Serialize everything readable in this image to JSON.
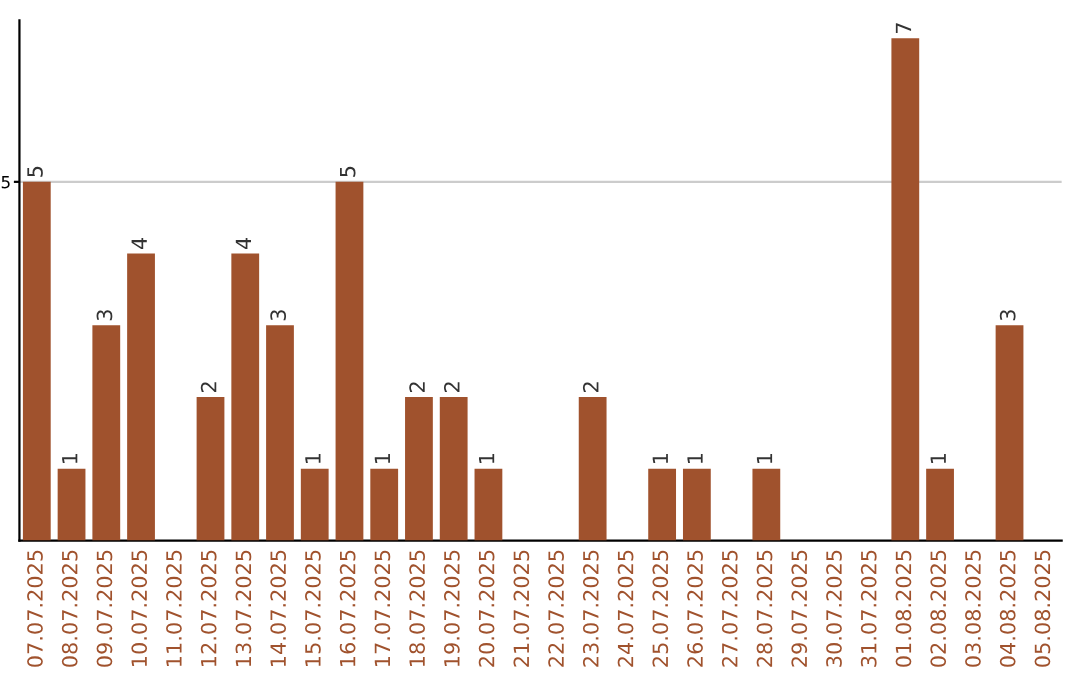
{
  "chart_data": {
    "type": "bar",
    "categories": [
      "07.07.2025",
      "08.07.2025",
      "09.07.2025",
      "10.07.2025",
      "11.07.2025",
      "12.07.2025",
      "13.07.2025",
      "14.07.2025",
      "15.07.2025",
      "16.07.2025",
      "17.07.2025",
      "18.07.2025",
      "19.07.2025",
      "20.07.2025",
      "21.07.2025",
      "22.07.2025",
      "23.07.2025",
      "24.07.2025",
      "25.07.2025",
      "26.07.2025",
      "27.07.2025",
      "28.07.2025",
      "29.07.2025",
      "30.07.2025",
      "31.07.2025",
      "01.08.2025",
      "02.08.2025",
      "03.08.2025",
      "04.08.2025",
      "05.08.2025"
    ],
    "values": [
      5,
      1,
      3,
      4,
      0,
      2,
      4,
      3,
      1,
      5,
      1,
      2,
      2,
      1,
      0,
      0,
      2,
      0,
      1,
      1,
      0,
      1,
      0,
      0,
      0,
      7,
      1,
      0,
      3,
      0
    ],
    "value_labels": [
      "5",
      "1",
      "3",
      "4",
      null,
      "2",
      "4",
      "3",
      "1",
      "5",
      "1",
      "2",
      "2",
      "1",
      null,
      null,
      "2",
      null,
      "1",
      "1",
      null,
      "1",
      null,
      null,
      null,
      "7",
      "1",
      null,
      "3",
      null
    ],
    "color": "#a0522d",
    "ylim": [
      0,
      7.25
    ],
    "yticks": [
      5
    ],
    "grid": "y"
  }
}
